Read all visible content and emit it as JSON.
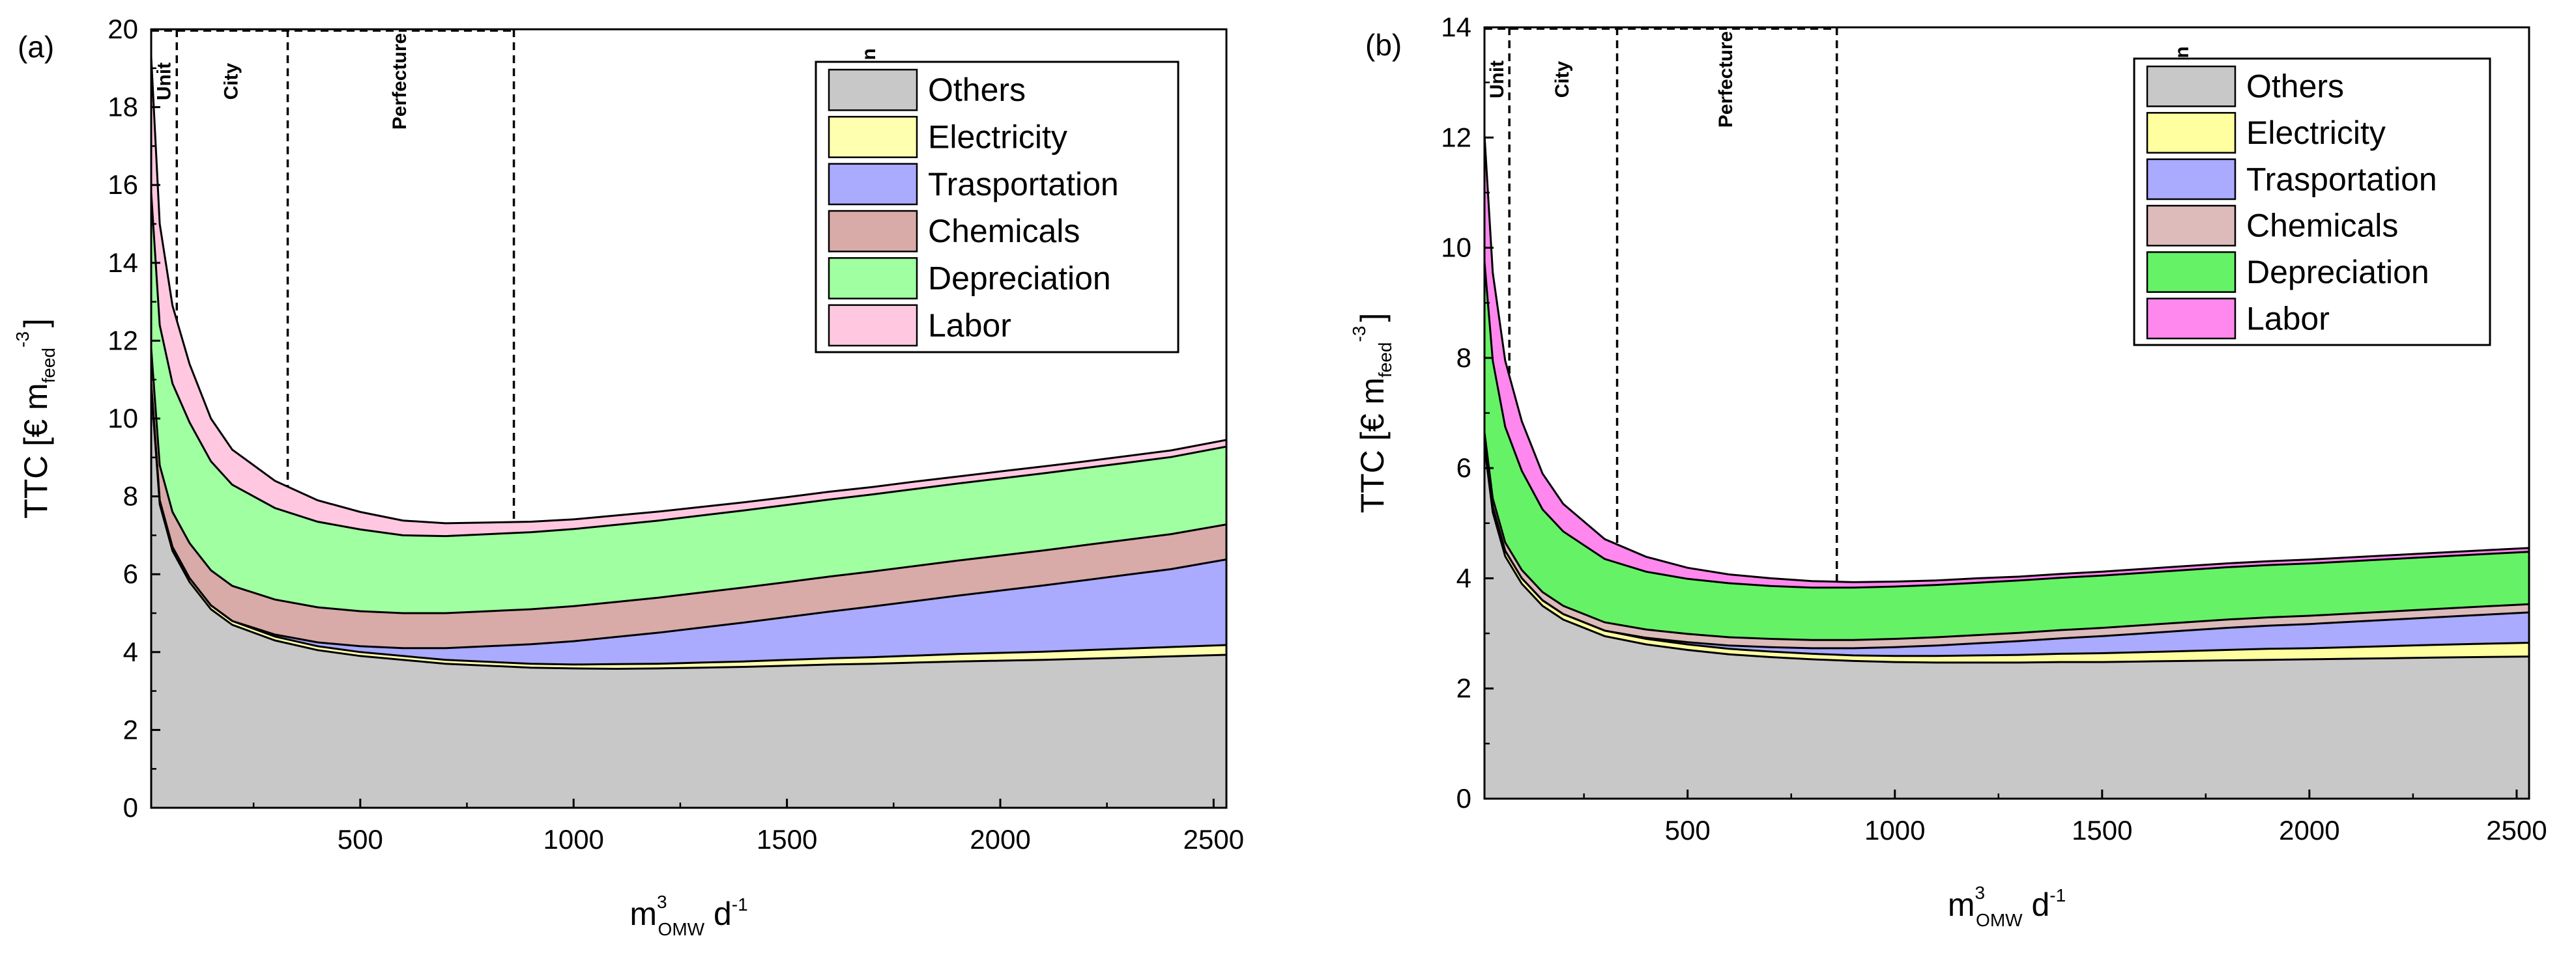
{
  "chart_data": [
    {
      "type": "area",
      "panel_label": "(a)",
      "ylabel": "TTC [€ m",
      "ylabel_sub": "feed",
      "ylabel_sup": "-3",
      "ylabel_end": "]",
      "xlabel": "m",
      "xlabel_sup": "3",
      "xlabel_sub": "OMW",
      "xlabel_end": " d",
      "xlabel_end_sup": "-1",
      "xlim": [
        10,
        2530
      ],
      "ylim": [
        0,
        20
      ],
      "xticks": [
        500,
        1000,
        1500,
        2000,
        2500
      ],
      "yticks": [
        0,
        2,
        4,
        6,
        8,
        10,
        12,
        14,
        16,
        18,
        20
      ],
      "regions": [
        {
          "label": "Unit",
          "end": 70
        },
        {
          "label": "City",
          "end": 330
        },
        {
          "label": "Perfecture",
          "end": 860
        },
        {
          "label": "Region",
          "end": 2530
        }
      ],
      "legend_position": "top-right",
      "x": [
        10,
        30,
        60,
        100,
        150,
        200,
        300,
        400,
        500,
        600,
        700,
        800,
        900,
        1000,
        1100,
        1200,
        1300,
        1400,
        1500,
        1600,
        1700,
        1800,
        1900,
        2000,
        2100,
        2200,
        2300,
        2400,
        2530
      ],
      "series": [
        {
          "name": "Others",
          "color": "#c8c8c8",
          "values": [
            10.8,
            7.8,
            6.6,
            5.8,
            5.1,
            4.7,
            4.3,
            4.05,
            3.9,
            3.8,
            3.7,
            3.65,
            3.6,
            3.58,
            3.57,
            3.58,
            3.6,
            3.62,
            3.65,
            3.68,
            3.7,
            3.73,
            3.76,
            3.78,
            3.8,
            3.83,
            3.86,
            3.89,
            3.93
          ]
        },
        {
          "name": "Electricity",
          "color": "#ffffb0",
          "values": [
            0.1,
            0.1,
            0.1,
            0.1,
            0.1,
            0.1,
            0.1,
            0.1,
            0.1,
            0.1,
            0.1,
            0.1,
            0.1,
            0.1,
            0.12,
            0.12,
            0.13,
            0.14,
            0.15,
            0.16,
            0.17,
            0.18,
            0.19,
            0.2,
            0.21,
            0.22,
            0.23,
            0.24,
            0.25
          ]
        },
        {
          "name": "Trasportation",
          "color": "#aaaaff",
          "values": [
            0.0,
            0.0,
            0.0,
            0.0,
            0.0,
            0.0,
            0.05,
            0.1,
            0.15,
            0.2,
            0.3,
            0.4,
            0.5,
            0.6,
            0.7,
            0.8,
            0.9,
            1.0,
            1.1,
            1.2,
            1.3,
            1.4,
            1.5,
            1.6,
            1.7,
            1.8,
            1.9,
            2.0,
            2.2
          ]
        },
        {
          "name": "Chemicals",
          "color": "#d8aaa8",
          "values": [
            0.9,
            0.9,
            0.9,
            0.9,
            0.9,
            0.9,
            0.9,
            0.9,
            0.9,
            0.9,
            0.9,
            0.9,
            0.9,
            0.9,
            0.9,
            0.9,
            0.9,
            0.9,
            0.9,
            0.9,
            0.9,
            0.9,
            0.9,
            0.9,
            0.9,
            0.9,
            0.9,
            0.9,
            0.9
          ]
        },
        {
          "name": "Depreciation",
          "color": "#a0ffa0",
          "values": [
            4.0,
            3.6,
            3.3,
            3.1,
            2.8,
            2.6,
            2.35,
            2.2,
            2.1,
            2.0,
            1.98,
            1.98,
            1.98,
            1.98,
            1.98,
            1.98,
            1.98,
            1.98,
            1.98,
            1.98,
            1.98,
            1.98,
            1.98,
            1.98,
            1.98,
            1.98,
            1.98,
            1.98,
            2.0
          ]
        },
        {
          "name": "Labor",
          "color": "#ffc8e0",
          "values": [
            3.5,
            2.6,
            2.0,
            1.5,
            1.1,
            0.9,
            0.7,
            0.55,
            0.45,
            0.38,
            0.33,
            0.3,
            0.27,
            0.25,
            0.24,
            0.23,
            0.22,
            0.21,
            0.2,
            0.2,
            0.19,
            0.19,
            0.18,
            0.18,
            0.18,
            0.17,
            0.17,
            0.17,
            0.17
          ]
        }
      ]
    },
    {
      "type": "area",
      "panel_label": "(b)",
      "ylabel": "TTC [€ m",
      "ylabel_sub": "feed",
      "ylabel_sup": "-3",
      "ylabel_end": "]",
      "xlabel": "m",
      "xlabel_sup": "3",
      "xlabel_sub": "OMW",
      "xlabel_end": " d",
      "xlabel_end_sup": "-1",
      "xlim": [
        10,
        2530
      ],
      "ylim": [
        0,
        14
      ],
      "xticks": [
        500,
        1000,
        1500,
        2000,
        2500
      ],
      "yticks": [
        0,
        2,
        4,
        6,
        8,
        10,
        12,
        14
      ],
      "regions": [
        {
          "label": "Unit",
          "end": 70
        },
        {
          "label": "City",
          "end": 330
        },
        {
          "label": "Perfecture",
          "end": 860
        },
        {
          "label": "Region",
          "end": 2530
        }
      ],
      "legend_position": "top-right",
      "x": [
        10,
        30,
        60,
        100,
        150,
        200,
        300,
        400,
        500,
        600,
        700,
        800,
        900,
        1000,
        1100,
        1200,
        1300,
        1400,
        1500,
        1600,
        1700,
        1800,
        1900,
        2000,
        2100,
        2200,
        2300,
        2400,
        2530
      ],
      "series": [
        {
          "name": "Others",
          "color": "#c8c8c8",
          "values": [
            6.4,
            5.2,
            4.4,
            3.9,
            3.5,
            3.25,
            2.95,
            2.8,
            2.7,
            2.62,
            2.57,
            2.53,
            2.5,
            2.48,
            2.47,
            2.47,
            2.47,
            2.48,
            2.48,
            2.49,
            2.5,
            2.51,
            2.52,
            2.53,
            2.54,
            2.55,
            2.56,
            2.57,
            2.58
          ]
        },
        {
          "name": "Electricity",
          "color": "#ffffa0",
          "values": [
            0.1,
            0.1,
            0.1,
            0.1,
            0.1,
            0.1,
            0.1,
            0.1,
            0.1,
            0.1,
            0.1,
            0.1,
            0.1,
            0.11,
            0.12,
            0.13,
            0.14,
            0.15,
            0.16,
            0.17,
            0.18,
            0.19,
            0.2,
            0.2,
            0.21,
            0.22,
            0.23,
            0.24,
            0.25
          ]
        },
        {
          "name": "Trasportation",
          "color": "#aaaaff",
          "values": [
            0.0,
            0.0,
            0.0,
            0.0,
            0.0,
            0.0,
            0.0,
            0.02,
            0.04,
            0.06,
            0.08,
            0.1,
            0.13,
            0.16,
            0.19,
            0.22,
            0.25,
            0.28,
            0.31,
            0.34,
            0.37,
            0.4,
            0.42,
            0.44,
            0.46,
            0.48,
            0.5,
            0.52,
            0.55
          ]
        },
        {
          "name": "Chemicals",
          "color": "#ddbbbb",
          "values": [
            0.15,
            0.15,
            0.15,
            0.15,
            0.15,
            0.15,
            0.15,
            0.15,
            0.15,
            0.15,
            0.15,
            0.15,
            0.15,
            0.15,
            0.15,
            0.15,
            0.15,
            0.15,
            0.15,
            0.15,
            0.15,
            0.15,
            0.15,
            0.15,
            0.15,
            0.15,
            0.15,
            0.15,
            0.15
          ]
        },
        {
          "name": "Depreciation",
          "color": "#66f266",
          "values": [
            3.1,
            2.5,
            2.1,
            1.8,
            1.5,
            1.35,
            1.15,
            1.05,
            1.0,
            0.98,
            0.96,
            0.95,
            0.95,
            0.95,
            0.95,
            0.95,
            0.95,
            0.95,
            0.95,
            0.95,
            0.95,
            0.95,
            0.95,
            0.95,
            0.95,
            0.95,
            0.95,
            0.95,
            0.95
          ]
        },
        {
          "name": "Labor",
          "color": "#ff88ee",
          "values": [
            2.3,
            1.6,
            1.2,
            0.9,
            0.65,
            0.5,
            0.36,
            0.27,
            0.2,
            0.16,
            0.14,
            0.12,
            0.1,
            0.09,
            0.08,
            0.08,
            0.07,
            0.07,
            0.07,
            0.07,
            0.07,
            0.07,
            0.07,
            0.07,
            0.07,
            0.07,
            0.07,
            0.07,
            0.07
          ]
        }
      ]
    }
  ]
}
